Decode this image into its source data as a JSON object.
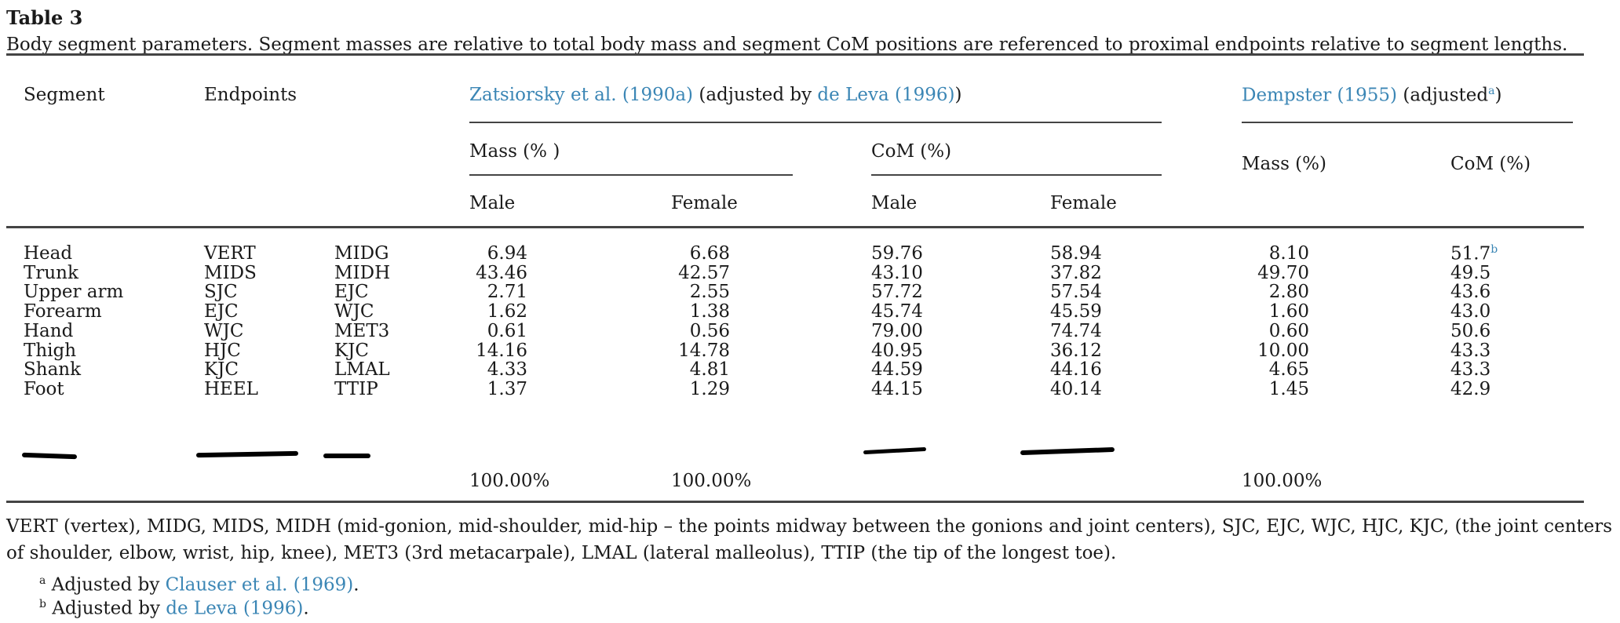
{
  "table": {
    "label": "Table 3",
    "caption": "Body segment parameters. Segment masses are relative to total body mass and segment CoM positions are referenced to proximal endpoints relative to segment lengths.",
    "headers": {
      "segment": "Segment",
      "endpoints": "Endpoints",
      "zats_ref": "Zatsiorsky et al. (1990a)",
      "zats_mid": " (adjusted by ",
      "zats_ref2": "de Leva (1996)",
      "zats_end": ")",
      "demp_ref": "Dempster (1955)",
      "demp_mid": " (adjusted",
      "demp_sup": "a",
      "demp_end": ")",
      "mass_pct": "Mass (% )",
      "com_pct": "CoM (%)",
      "male": "Male",
      "female": "Female",
      "demp_mass": "Mass (%)",
      "demp_com": "CoM (%)"
    },
    "rows": [
      {
        "segment": "Head",
        "ep1": "VERT",
        "ep2": "MIDG",
        "mass_m": "6.94",
        "mass_f": "6.68",
        "com_m": "59.76",
        "com_f": "58.94",
        "d_mass": "8.10",
        "d_com": "51.7",
        "d_com_sup": "b"
      },
      {
        "segment": "Trunk",
        "ep1": "MIDS",
        "ep2": "MIDH",
        "mass_m": "43.46",
        "mass_f": "42.57",
        "com_m": "43.10",
        "com_f": "37.82",
        "d_mass": "49.70",
        "d_com": "49.5",
        "d_com_sup": ""
      },
      {
        "segment": "Upper arm",
        "ep1": "SJC",
        "ep2": "EJC",
        "mass_m": "2.71",
        "mass_f": "2.55",
        "com_m": "57.72",
        "com_f": "57.54",
        "d_mass": "2.80",
        "d_com": "43.6",
        "d_com_sup": ""
      },
      {
        "segment": "Forearm",
        "ep1": "EJC",
        "ep2": "WJC",
        "mass_m": "1.62",
        "mass_f": "1.38",
        "com_m": "45.74",
        "com_f": "45.59",
        "d_mass": "1.60",
        "d_com": "43.0",
        "d_com_sup": ""
      },
      {
        "segment": "Hand",
        "ep1": "WJC",
        "ep2": "MET3",
        "mass_m": "0.61",
        "mass_f": "0.56",
        "com_m": "79.00",
        "com_f": "74.74",
        "d_mass": "0.60",
        "d_com": "50.6",
        "d_com_sup": ""
      },
      {
        "segment": "Thigh",
        "ep1": "HJC",
        "ep2": "KJC",
        "mass_m": "14.16",
        "mass_f": "14.78",
        "com_m": "40.95",
        "com_f": "36.12",
        "d_mass": "10.00",
        "d_com": "43.3",
        "d_com_sup": ""
      },
      {
        "segment": "Shank",
        "ep1": "KJC",
        "ep2": "LMAL",
        "mass_m": "4.33",
        "mass_f": "4.81",
        "com_m": "44.59",
        "com_f": "44.16",
        "d_mass": "4.65",
        "d_com": "43.3",
        "d_com_sup": ""
      },
      {
        "segment": "Foot",
        "ep1": "HEEL",
        "ep2": "TTIP",
        "mass_m": "1.37",
        "mass_f": "1.29",
        "com_m": "44.15",
        "com_f": "40.14",
        "d_mass": "1.45",
        "d_com": "42.9",
        "d_com_sup": ""
      }
    ],
    "totals": {
      "mass_m": "100.00%",
      "mass_f": "100.00%",
      "d_mass": "100.00%"
    },
    "footnote_line1": "VERT (vertex), MIDG, MIDS, MIDH (mid-gonion, mid-shoulder, mid-hip – the points midway between the gonions and joint centers), SJC, EJC, WJC, HJC, KJC, (the joint centers",
    "footnote_line2": "of shoulder, elbow, wrist, hip, knee), MET3 (3rd metacarpale), LMAL (lateral malleolus), TTIP (the tip of the longest toe).",
    "fn_a_mark": "a",
    "fn_a_text": " Adjusted by ",
    "fn_a_ref": "Clauser et al. (1969)",
    "fn_a_end": ".",
    "fn_b_mark": "b",
    "fn_b_text": " Adjusted by ",
    "fn_b_ref": "de Leva (1996)",
    "fn_b_end": "."
  }
}
